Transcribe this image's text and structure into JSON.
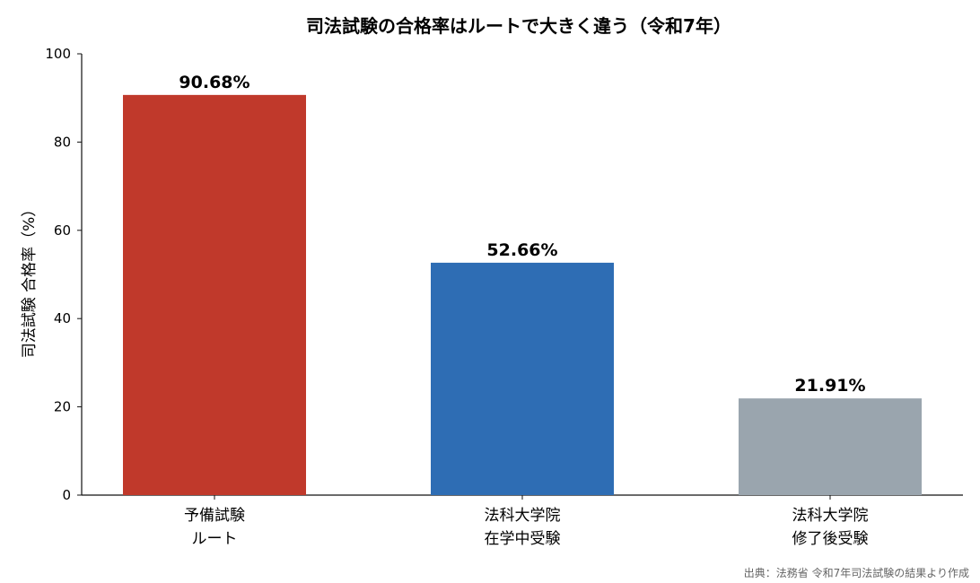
{
  "chart_data": {
    "type": "bar",
    "title": "司法試験の合格率はルートで大きく違う（令和7年）",
    "ylabel": "司法試験 合格率（%）",
    "xlabel": "",
    "ylim": [
      0,
      100
    ],
    "yticks": [
      0,
      20,
      40,
      60,
      80,
      100
    ],
    "grid": false,
    "categories": [
      [
        "予備試験",
        "ルート"
      ],
      [
        "法科大学院",
        "在学中受験"
      ],
      [
        "法科大学院",
        "修了後受験"
      ]
    ],
    "values": [
      90.68,
      52.66,
      21.91
    ],
    "data_labels": [
      "90.68%",
      "52.66%",
      "21.91%"
    ],
    "colors": [
      "#c0392b",
      "#2e6db4",
      "#9aa5ae"
    ],
    "source": "出典：法務省 令和7年司法試験の結果より作成"
  }
}
